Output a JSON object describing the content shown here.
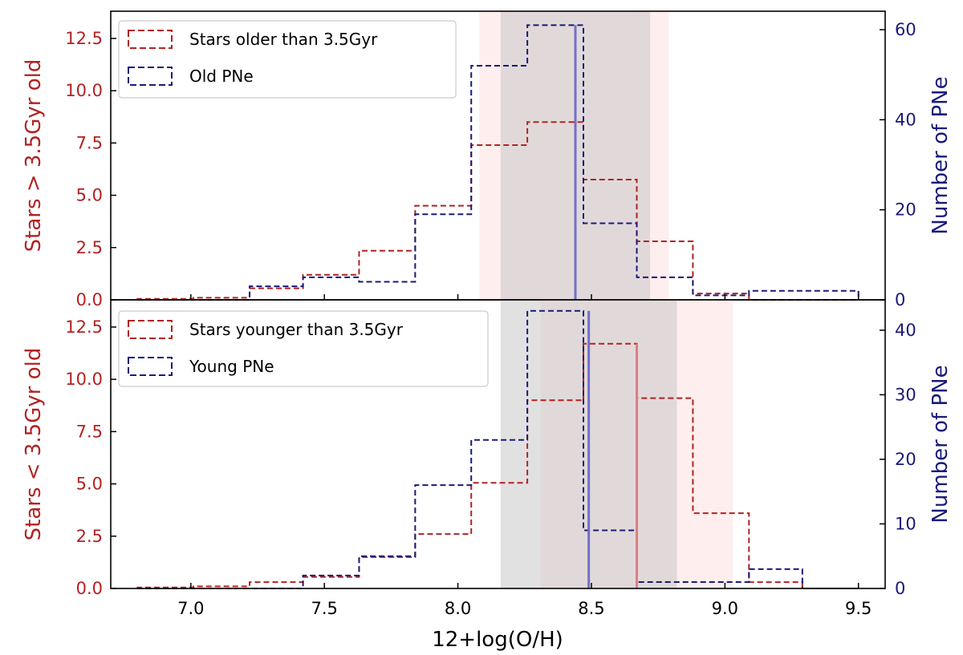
{
  "colors": {
    "stars": "#b22222",
    "pne": "#1a1a7a",
    "stars_band": "#ffe0e0",
    "pne_band": "#c8c8c8"
  },
  "xlabel": "12+log(O/H)",
  "xlim": [
    6.7,
    9.6
  ],
  "xticks": [
    7.0,
    7.5,
    8.0,
    8.5,
    9.0,
    9.5
  ],
  "xtick_labels": [
    "7.0",
    "7.5",
    "8.0",
    "8.5",
    "9.0",
    "9.5"
  ],
  "chart_data": [
    {
      "type": "histogram",
      "panel": "top",
      "ylabel_left": "Stars > 3.5Gyr old",
      "ylabel_right": "Number of PNe",
      "ylim_left": [
        0,
        13.8
      ],
      "ylim_right": [
        0,
        64.1
      ],
      "yticks_left": [
        "0.0",
        "2.5",
        "5.0",
        "7.5",
        "10.0",
        "12.5"
      ],
      "yticks_right": [
        "0",
        "20",
        "40",
        "60"
      ],
      "legend_position": "upper-left",
      "series": [
        {
          "name": "Stars older than 3.5Gyr",
          "axis": "left",
          "bin_edges": [
            6.8,
            7.01,
            7.22,
            7.42,
            7.63,
            7.84,
            8.05,
            8.26,
            8.47,
            8.67,
            8.88,
            9.09,
            9.29,
            9.5
          ],
          "values": [
            0.05,
            0.1,
            0.55,
            1.2,
            2.35,
            4.5,
            7.4,
            8.5,
            5.75,
            2.8,
            0.3,
            0.0,
            0.0
          ]
        },
        {
          "name": "Old PNe",
          "axis": "right",
          "bin_edges": [
            6.8,
            7.01,
            7.22,
            7.42,
            7.63,
            7.84,
            8.05,
            8.26,
            8.47,
            8.67,
            8.88,
            9.09,
            9.29,
            9.5
          ],
          "values": [
            0,
            0,
            3,
            5,
            4,
            19,
            52,
            61,
            17,
            5,
            1,
            2,
            2
          ]
        }
      ],
      "bands": [
        {
          "series": "stars",
          "from": 8.08,
          "to": 8.79
        },
        {
          "series": "pne",
          "from": 8.16,
          "to": 8.72
        }
      ],
      "medians": [
        {
          "series": "stars",
          "x": 8.44
        },
        {
          "series": "pne",
          "x": 8.44
        }
      ]
    },
    {
      "type": "histogram",
      "panel": "bottom",
      "ylabel_left": "Stars < 3.5Gyr old",
      "ylabel_right": "Number of PNe",
      "ylim_left": [
        0,
        13.8
      ],
      "ylim_right": [
        0,
        44.7
      ],
      "yticks_left": [
        "0.0",
        "2.5",
        "5.0",
        "7.5",
        "10.0",
        "12.5"
      ],
      "yticks_right": [
        "0",
        "10",
        "20",
        "30",
        "40"
      ],
      "legend_position": "upper-left",
      "series": [
        {
          "name": "Stars younger than 3.5Gyr",
          "axis": "left",
          "bin_edges": [
            6.8,
            7.01,
            7.22,
            7.42,
            7.63,
            7.84,
            8.05,
            8.26,
            8.47,
            8.67,
            8.88,
            9.09,
            9.29,
            9.5
          ],
          "values": [
            0.05,
            0.1,
            0.3,
            0.55,
            1.5,
            2.6,
            5.05,
            9.0,
            11.7,
            9.1,
            3.6,
            0.3,
            0.0
          ]
        },
        {
          "name": "Young PNe",
          "axis": "right",
          "bin_edges": [
            6.8,
            7.01,
            7.22,
            7.42,
            7.63,
            7.84,
            8.05,
            8.26,
            8.47,
            8.67,
            8.88,
            9.09,
            9.29,
            9.5
          ],
          "values": [
            0,
            0,
            0,
            2,
            5,
            16,
            23,
            43,
            9,
            1,
            1,
            3,
            0
          ]
        }
      ],
      "bands": [
        {
          "series": "stars",
          "from": 8.31,
          "to": 9.03
        },
        {
          "series": "pne",
          "from": 8.16,
          "to": 8.82
        }
      ],
      "medians": [
        {
          "series": "stars",
          "x": 8.67
        },
        {
          "series": "pne",
          "x": 8.49
        }
      ]
    }
  ]
}
